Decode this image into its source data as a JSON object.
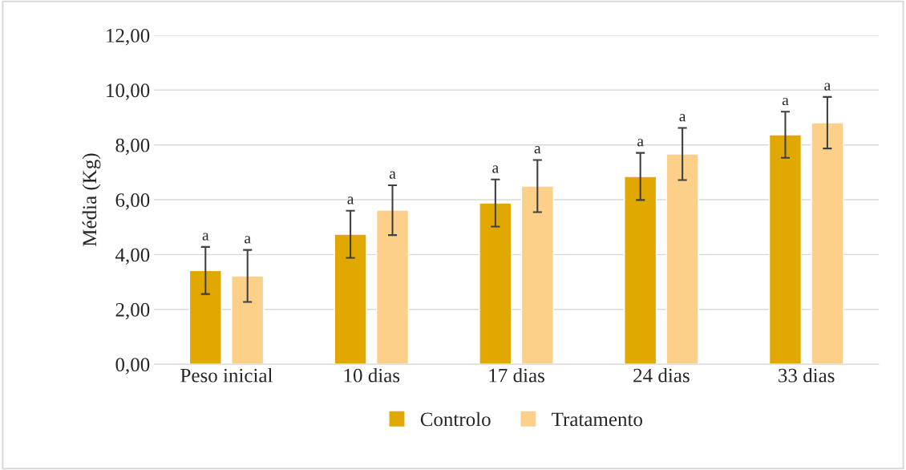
{
  "chart_data": {
    "type": "bar",
    "ylabel": "Média (Kg)",
    "categories": [
      "Peso inicial",
      "10 dias",
      "17 dias",
      "24 dias",
      "33 dias"
    ],
    "series": [
      {
        "name": "Controlo",
        "color": "#e0a800",
        "values": [
          3.42,
          4.74,
          5.88,
          6.85,
          8.37
        ],
        "errors": [
          0.86,
          0.86,
          0.86,
          0.86,
          0.84
        ],
        "value_labels": [
          "a",
          "a",
          "a",
          "a",
          "a"
        ]
      },
      {
        "name": "Tratamento",
        "color": "#fdd08a",
        "values": [
          3.22,
          5.62,
          6.5,
          7.67,
          8.81
        ],
        "errors": [
          0.95,
          0.91,
          0.95,
          0.95,
          0.94
        ],
        "value_labels": [
          "a",
          "a",
          "a",
          "a",
          "a"
        ]
      }
    ],
    "ylim": [
      0,
      12
    ],
    "yticks": [
      {
        "value": 0,
        "label": "0,00"
      },
      {
        "value": 2,
        "label": "2,00"
      },
      {
        "value": 4,
        "label": "4,00"
      },
      {
        "value": 6,
        "label": "6,00"
      },
      {
        "value": 8,
        "label": "8,00"
      },
      {
        "value": 10,
        "label": "10,00"
      },
      {
        "value": 12,
        "label": "12,00"
      }
    ],
    "grid": "y",
    "legend": "bottom"
  }
}
